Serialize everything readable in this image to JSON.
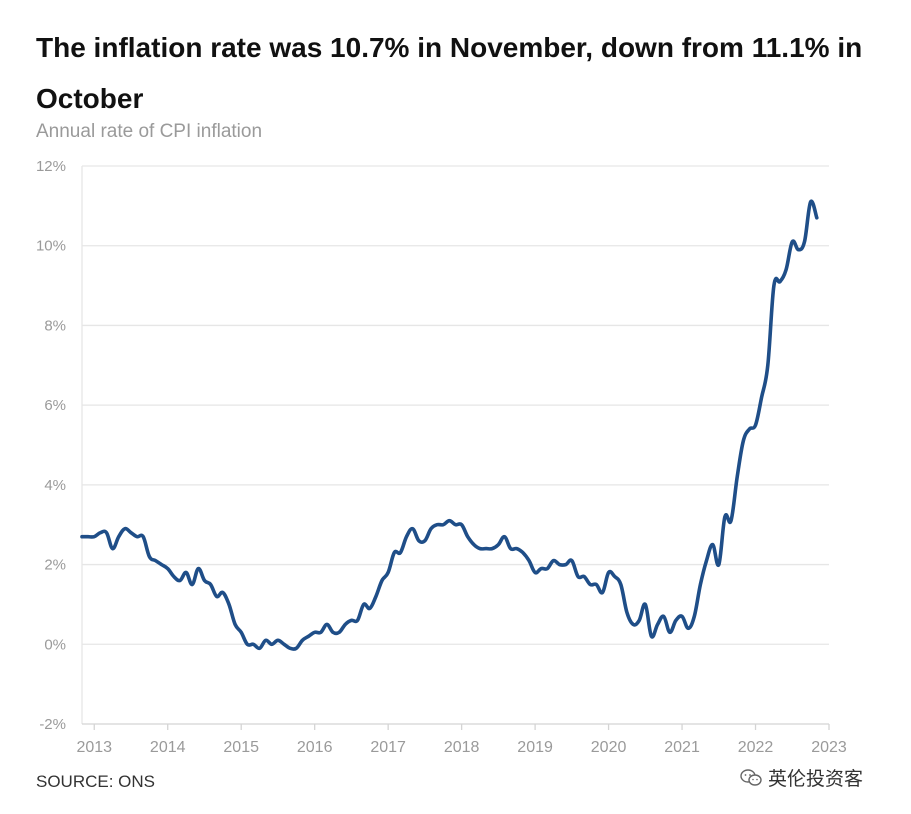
{
  "header": {
    "title": "The inflation rate was 10.7% in November, down from 11.1% in October",
    "subtitle": "Annual rate of CPI inflation"
  },
  "footer": {
    "source": "SOURCE: ONS",
    "watermark_text": "英伦投资客",
    "watermark_icon": "wechat-icon"
  },
  "colors": {
    "line": "#1f4e88",
    "grid": "#e6e6e6",
    "tick_text": "#9a9a9a"
  },
  "chart_data": {
    "type": "line",
    "title": "The inflation rate was 10.7% in November, down from 11.1% in October",
    "subtitle": "Annual rate of CPI inflation",
    "xlabel": "",
    "ylabel": "",
    "ylim": [
      -2,
      12
    ],
    "yticks": [
      -2,
      0,
      2,
      4,
      6,
      8,
      10,
      12
    ],
    "ytick_labels": [
      "-2%",
      "0%",
      "2%",
      "4%",
      "6%",
      "8%",
      "10%",
      "12%"
    ],
    "xlim": [
      "2012-11",
      "2023-01"
    ],
    "xticks": [
      "2013",
      "2014",
      "2015",
      "2016",
      "2017",
      "2018",
      "2019",
      "2020",
      "2021",
      "2022",
      "2023"
    ],
    "grid": "horizontal",
    "legend": "none",
    "series": [
      {
        "name": "",
        "x": [
          "2012-11",
          "2012-12",
          "2013-01",
          "2013-02",
          "2013-03",
          "2013-04",
          "2013-05",
          "2013-06",
          "2013-07",
          "2013-08",
          "2013-09",
          "2013-10",
          "2013-11",
          "2013-12",
          "2014-01",
          "2014-02",
          "2014-03",
          "2014-04",
          "2014-05",
          "2014-06",
          "2014-07",
          "2014-08",
          "2014-09",
          "2014-10",
          "2014-11",
          "2014-12",
          "2015-01",
          "2015-02",
          "2015-03",
          "2015-04",
          "2015-05",
          "2015-06",
          "2015-07",
          "2015-08",
          "2015-09",
          "2015-10",
          "2015-11",
          "2015-12",
          "2016-01",
          "2016-02",
          "2016-03",
          "2016-04",
          "2016-05",
          "2016-06",
          "2016-07",
          "2016-08",
          "2016-09",
          "2016-10",
          "2016-11",
          "2016-12",
          "2017-01",
          "2017-02",
          "2017-03",
          "2017-04",
          "2017-05",
          "2017-06",
          "2017-07",
          "2017-08",
          "2017-09",
          "2017-10",
          "2017-11",
          "2017-12",
          "2018-01",
          "2018-02",
          "2018-03",
          "2018-04",
          "2018-05",
          "2018-06",
          "2018-07",
          "2018-08",
          "2018-09",
          "2018-10",
          "2018-11",
          "2018-12",
          "2019-01",
          "2019-02",
          "2019-03",
          "2019-04",
          "2019-05",
          "2019-06",
          "2019-07",
          "2019-08",
          "2019-09",
          "2019-10",
          "2019-11",
          "2019-12",
          "2020-01",
          "2020-02",
          "2020-03",
          "2020-04",
          "2020-05",
          "2020-06",
          "2020-07",
          "2020-08",
          "2020-09",
          "2020-10",
          "2020-11",
          "2020-12",
          "2021-01",
          "2021-02",
          "2021-03",
          "2021-04",
          "2021-05",
          "2021-06",
          "2021-07",
          "2021-08",
          "2021-09",
          "2021-10",
          "2021-11",
          "2021-12",
          "2022-01",
          "2022-02",
          "2022-03",
          "2022-04",
          "2022-05",
          "2022-06",
          "2022-07",
          "2022-08",
          "2022-09",
          "2022-10",
          "2022-11"
        ],
        "values": [
          2.7,
          2.7,
          2.7,
          2.8,
          2.8,
          2.4,
          2.7,
          2.9,
          2.8,
          2.7,
          2.7,
          2.2,
          2.1,
          2.0,
          1.9,
          1.7,
          1.6,
          1.8,
          1.5,
          1.9,
          1.6,
          1.5,
          1.2,
          1.3,
          1.0,
          0.5,
          0.3,
          0.0,
          0.0,
          -0.1,
          0.1,
          0.0,
          0.1,
          0.0,
          -0.1,
          -0.1,
          0.1,
          0.2,
          0.3,
          0.3,
          0.5,
          0.3,
          0.3,
          0.5,
          0.6,
          0.6,
          1.0,
          0.9,
          1.2,
          1.6,
          1.8,
          2.3,
          2.3,
          2.7,
          2.9,
          2.6,
          2.6,
          2.9,
          3.0,
          3.0,
          3.1,
          3.0,
          3.0,
          2.7,
          2.5,
          2.4,
          2.4,
          2.4,
          2.5,
          2.7,
          2.4,
          2.4,
          2.3,
          2.1,
          1.8,
          1.9,
          1.9,
          2.1,
          2.0,
          2.0,
          2.1,
          1.7,
          1.7,
          1.5,
          1.5,
          1.3,
          1.8,
          1.7,
          1.5,
          0.8,
          0.5,
          0.6,
          1.0,
          0.2,
          0.5,
          0.7,
          0.3,
          0.6,
          0.7,
          0.4,
          0.7,
          1.5,
          2.1,
          2.5,
          2.0,
          3.2,
          3.1,
          4.2,
          5.1,
          5.4,
          5.5,
          6.2,
          7.0,
          9.0,
          9.1,
          9.4,
          10.1,
          9.9,
          10.1,
          11.1,
          10.7
        ]
      }
    ]
  }
}
